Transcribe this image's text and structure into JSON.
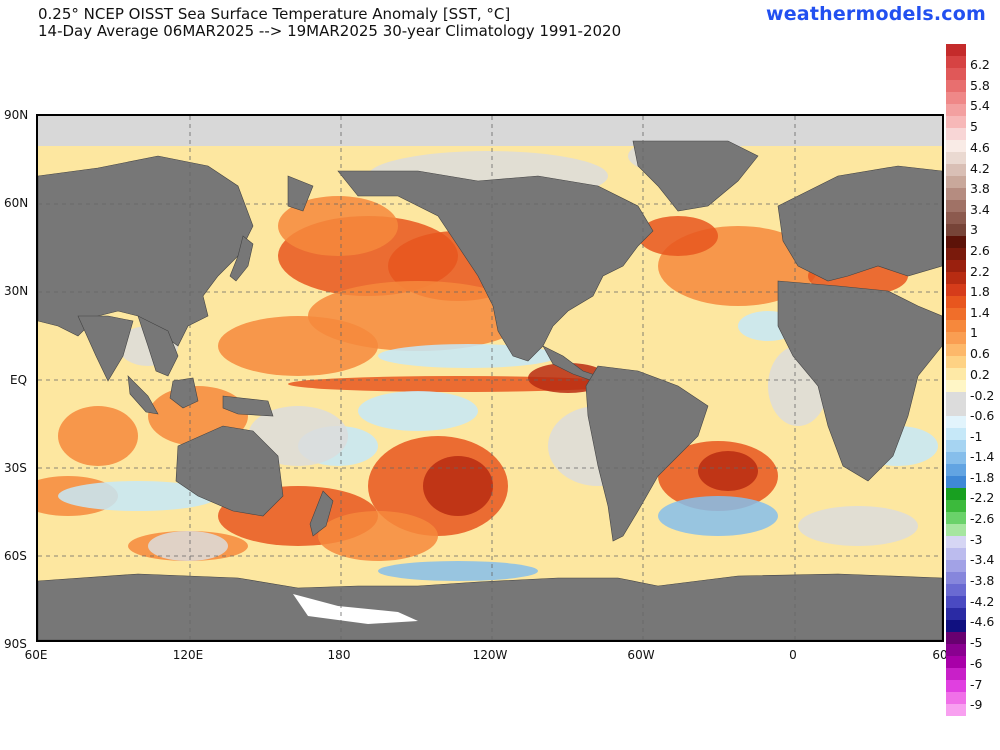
{
  "header": {
    "title_line1": "0.25° NCEP OISST Sea Surface Temperature Anomaly [SST, °C]",
    "title_line2": "14-Day Average 06MAR2025 --> 19MAR2025   30-year Climatology 1991-2020",
    "brand": "weathermodels.com"
  },
  "axes": {
    "lat_labels": [
      "90N",
      "60N",
      "30N",
      "EQ",
      "30S",
      "60S",
      "90S"
    ],
    "lon_labels": [
      "60E",
      "120E",
      "180",
      "120W",
      "60W",
      "0",
      "60"
    ]
  },
  "colorbar": {
    "labels": [
      "6.2",
      "5.8",
      "5.4",
      "5",
      "4.6",
      "4.2",
      "3.8",
      "3.4",
      "3",
      "2.6",
      "2.2",
      "1.8",
      "1.4",
      "1",
      "0.6",
      "0.2",
      "-0.2",
      "-0.6",
      "-1",
      "-1.4",
      "-1.8",
      "-2.2",
      "-2.6",
      "-3",
      "-3.4",
      "-3.8",
      "-4.2",
      "-4.6",
      "-5",
      "-6",
      "-7",
      "-9"
    ],
    "colors": [
      "#c42b2b",
      "#d64343",
      "#e05858",
      "#e86f6f",
      "#ef8888",
      "#f3a0a0",
      "#f7b8b8",
      "#f8d6d6",
      "#f9ebe6",
      "#ead9d1",
      "#d9bfb5",
      "#c9a89b",
      "#b58c80",
      "#a07266",
      "#8c5a4e",
      "#774438",
      "#5c1208",
      "#7a1a0c",
      "#9a200e",
      "#b82c12",
      "#d63c1a",
      "#e8561e",
      "#f06e2a",
      "#f6883c",
      "#fa9e52",
      "#fdb86a",
      "#fed284",
      "#fee9a6",
      "#fff6c6",
      "#dcdcdc",
      "#dcdcdc",
      "#e2f4fc",
      "#c6e8f8",
      "#a6d4f2",
      "#86beeb",
      "#62a4e2",
      "#3f88d6",
      "#18a020",
      "#3cba3c",
      "#6ad26a",
      "#a6e6a0",
      "#d6d6f4",
      "#bcbcee",
      "#a2a2e6",
      "#8686dc",
      "#6a6ad2",
      "#4a4ac2",
      "#2a2aa4",
      "#101080",
      "#680070",
      "#8a0090",
      "#a800a8",
      "#c820c8",
      "#e040e0",
      "#f070e8",
      "#f8a0f0"
    ],
    "label_positions_note": "Colorbar labels are the printed tick values"
  },
  "map": {
    "land_color": "#777777",
    "ice_color": "#d8d8d8",
    "ocean_palette": [
      "#fee9a6",
      "#fdb86a",
      "#f6883c",
      "#e8561e",
      "#b82c12",
      "#dcdcdc",
      "#c6e8f8",
      "#86beeb"
    ]
  }
}
